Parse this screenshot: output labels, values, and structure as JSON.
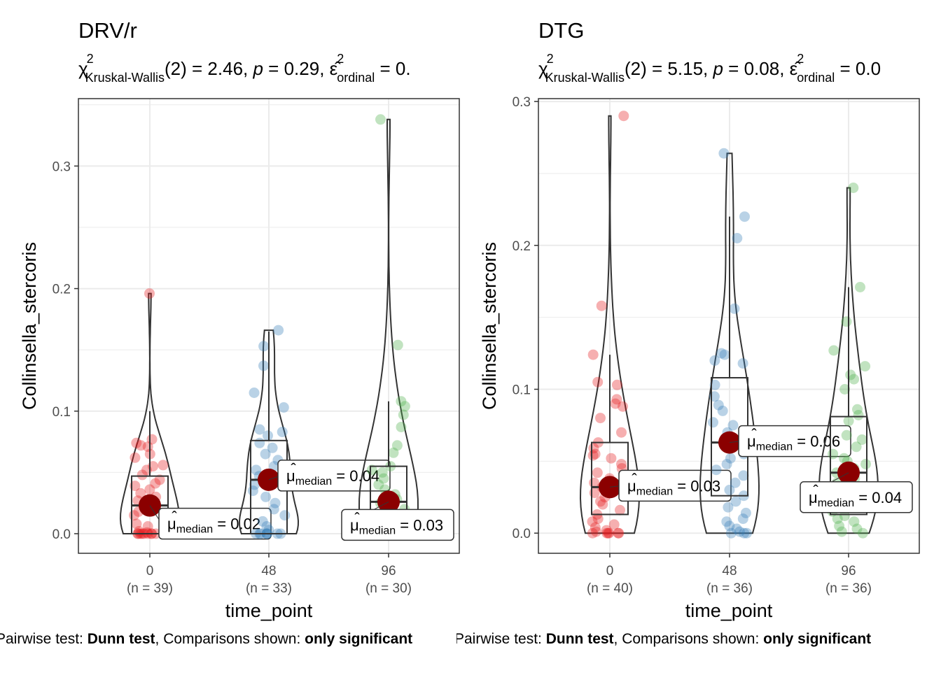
{
  "chart_data": [
    {
      "type": "violin-box-jitter",
      "title": "DRV/r",
      "subtitle": {
        "stat": "χ",
        "sup": "2",
        "sub": "Kruskal-Wallis",
        "df_text": "(2) = 2.46, ",
        "p_label": "p",
        "p_text": " = 0.29, ",
        "eff_sym": "ε̂",
        "eff_sup": "2",
        "eff_sub": "ordinal",
        "eff_text": " = 0."
      },
      "xlabel": "time_point",
      "ylabel": "Collinsella_stercoris",
      "ylim": [
        -0.016,
        0.355
      ],
      "yticks": [
        0.0,
        0.1,
        0.2,
        0.3
      ],
      "ytick_labels": [
        "0.0",
        "0.1",
        "0.2",
        "0.3"
      ],
      "categories": [
        "0",
        "48",
        "96"
      ],
      "n_labels": [
        "(n = 39)",
        "(n = 33)",
        "(n = 30)"
      ],
      "colors": [
        "#e41a1c",
        "#377eb8",
        "#4daf4a"
      ],
      "grid": true,
      "medians": [
        0.02,
        0.04,
        0.03
      ],
      "median_labels": [
        "μ̂median = 0.02",
        "μ̂median = 0.04",
        "μ̂median = 0.03"
      ],
      "median_label_parts": [
        {
          "mu": "μ",
          "sub": "median",
          "rest": " = 0.02"
        },
        {
          "mu": "μ",
          "sub": "median",
          "rest": " = 0.04"
        },
        {
          "mu": "μ",
          "sub": "median",
          "rest": " = 0.03"
        }
      ],
      "box": [
        {
          "q1": 0.0,
          "median": 0.023,
          "q3": 0.047,
          "min": 0.0,
          "max": 0.1
        },
        {
          "q1": 0.0,
          "median": 0.044,
          "q3": 0.076,
          "min": 0.0,
          "max": 0.165
        },
        {
          "q1": 0.0,
          "median": 0.026,
          "q3": 0.055,
          "min": 0.0,
          "max": 0.108
        }
      ],
      "violin_max": [
        0.196,
        0.166,
        0.338
      ],
      "points": [
        [
          0.196,
          0.077,
          0.074,
          0.072,
          0.071,
          0.065,
          0.062,
          0.056,
          0.055,
          0.052,
          0.048,
          0.044,
          0.041,
          0.039,
          0.036,
          0.033,
          0.03,
          0.027,
          0.024,
          0.021,
          0.018,
          0.015,
          0.012,
          0.01,
          0.008,
          0.006,
          0.004,
          0.002,
          0.001,
          0.0,
          0.0,
          0.0,
          0.0,
          0.0,
          0.0,
          0.0,
          0.0,
          0.0,
          0.0
        ],
        [
          0.166,
          0.153,
          0.137,
          0.115,
          0.103,
          0.085,
          0.083,
          0.08,
          0.074,
          0.07,
          0.065,
          0.06,
          0.055,
          0.052,
          0.047,
          0.044,
          0.04,
          0.035,
          0.03,
          0.025,
          0.02,
          0.015,
          0.01,
          0.006,
          0.003,
          0.0,
          0.0,
          0.0,
          0.0,
          0.0,
          0.0,
          0.0,
          0.0
        ],
        [
          0.338,
          0.154,
          0.108,
          0.104,
          0.097,
          0.087,
          0.072,
          0.066,
          0.055,
          0.052,
          0.05,
          0.045,
          0.04,
          0.036,
          0.032,
          0.028,
          0.025,
          0.02,
          0.016,
          0.012,
          0.008,
          0.005,
          0.003,
          0.001,
          0.0,
          0.0,
          0.0,
          0.0,
          0.0,
          0.0
        ]
      ],
      "caption": {
        "pre": "Pairwise test: ",
        "test": "Dunn test",
        "mid": ", Comparisons shown: ",
        "shown": "only significant"
      }
    },
    {
      "type": "violin-box-jitter",
      "title": "DTG",
      "subtitle": {
        "stat": "χ",
        "sup": "2",
        "sub": "Kruskal-Wallis",
        "df_text": "(2) = 5.15, ",
        "p_label": "p",
        "p_text": " = 0.08, ",
        "eff_sym": "ε̂",
        "eff_sup": "2",
        "eff_sub": "ordinal",
        "eff_text": " = 0.0"
      },
      "xlabel": "time_point",
      "ylabel": "Collinsella_stercoris",
      "ylim": [
        -0.014,
        0.302
      ],
      "yticks": [
        0.0,
        0.1,
        0.2,
        0.3
      ],
      "ytick_labels": [
        "0.0",
        "0.1",
        "0.2",
        "0.3"
      ],
      "categories": [
        "0",
        "48",
        "96"
      ],
      "n_labels": [
        "(n = 40)",
        "(n = 36)",
        "(n = 36)"
      ],
      "colors": [
        "#e41a1c",
        "#377eb8",
        "#4daf4a"
      ],
      "grid": true,
      "medians": [
        0.03,
        0.06,
        0.04
      ],
      "median_labels": [
        "μ̂median = 0.03",
        "μ̂median = 0.06",
        "μ̂median = 0.04"
      ],
      "median_label_parts": [
        {
          "mu": "μ",
          "sub": "median",
          "rest": " = 0.03"
        },
        {
          "mu": "μ",
          "sub": "median",
          "rest": " = 0.06"
        },
        {
          "mu": "μ",
          "sub": "median",
          "rest": " = 0.04"
        }
      ],
      "box": [
        {
          "q1": 0.013,
          "median": 0.032,
          "q3": 0.063,
          "min": 0.0,
          "max": 0.124
        },
        {
          "q1": 0.026,
          "median": 0.063,
          "q3": 0.108,
          "min": 0.0,
          "max": 0.22
        },
        {
          "q1": 0.013,
          "median": 0.042,
          "q3": 0.081,
          "min": 0.0,
          "max": 0.171
        }
      ],
      "violin_max": [
        0.29,
        0.264,
        0.24
      ],
      "points": [
        [
          0.29,
          0.158,
          0.124,
          0.105,
          0.103,
          0.093,
          0.09,
          0.088,
          0.08,
          0.07,
          0.063,
          0.059,
          0.055,
          0.054,
          0.052,
          0.048,
          0.045,
          0.042,
          0.038,
          0.035,
          0.032,
          0.03,
          0.028,
          0.025,
          0.022,
          0.02,
          0.016,
          0.013,
          0.01,
          0.008,
          0.006,
          0.004,
          0.002,
          0.001,
          0.0,
          0.0,
          0.0,
          0.0,
          0.0,
          0.0
        ],
        [
          0.264,
          0.22,
          0.205,
          0.156,
          0.125,
          0.124,
          0.12,
          0.118,
          0.103,
          0.095,
          0.089,
          0.085,
          0.077,
          0.075,
          0.07,
          0.066,
          0.063,
          0.055,
          0.052,
          0.048,
          0.044,
          0.04,
          0.035,
          0.03,
          0.026,
          0.022,
          0.018,
          0.014,
          0.01,
          0.008,
          0.005,
          0.003,
          0.001,
          0.0,
          0.0,
          0.0
        ],
        [
          0.24,
          0.171,
          0.147,
          0.127,
          0.116,
          0.11,
          0.107,
          0.1,
          0.086,
          0.082,
          0.078,
          0.068,
          0.065,
          0.06,
          0.055,
          0.052,
          0.05,
          0.048,
          0.045,
          0.042,
          0.038,
          0.035,
          0.032,
          0.028,
          0.025,
          0.022,
          0.02,
          0.018,
          0.015,
          0.012,
          0.01,
          0.008,
          0.005,
          0.003,
          0.001,
          0.0
        ]
      ],
      "caption": {
        "pre": "Pairwise test: ",
        "test": "Dunn test",
        "mid": ", Comparisons shown: ",
        "shown": "only significant"
      }
    }
  ]
}
